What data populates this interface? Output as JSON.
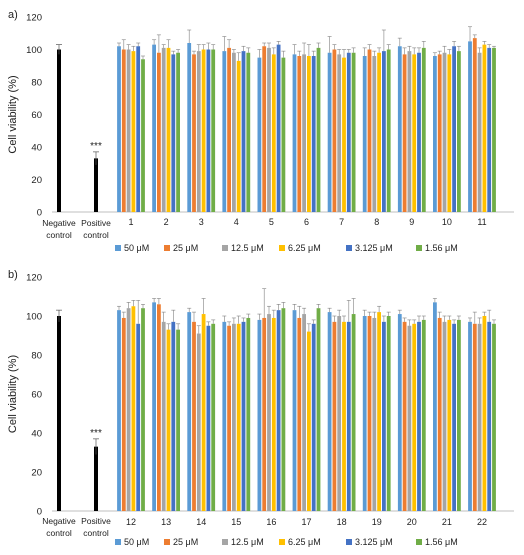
{
  "figure": {
    "panels": [
      "a)",
      "b)"
    ]
  },
  "colors": {
    "controls": "#000000",
    "series": [
      "#5b9bd5",
      "#ed7d31",
      "#a5a5a5",
      "#ffc000",
      "#4472c4",
      "#70ad47"
    ],
    "axis": "#bfbfbf"
  },
  "chart_data": [
    {
      "type": "bar",
      "panel_label": "a)",
      "ylabel": "Cell viability (%)",
      "ylim": [
        0,
        120
      ],
      "yticks": [
        0,
        20,
        40,
        60,
        80,
        100,
        120
      ],
      "grid": false,
      "legend_position": "bottom",
      "controls": {
        "categories": [
          [
            "Negative",
            "control"
          ],
          [
            "Positive",
            "control"
          ]
        ],
        "values": [
          100,
          33
        ],
        "errors": [
          3,
          4
        ],
        "annotation": "***"
      },
      "categories": [
        "1",
        "2",
        "3",
        "4",
        "5",
        "6",
        "7",
        "8",
        "9",
        "10",
        "11"
      ],
      "series": [
        {
          "name": "50 μM",
          "values": [
            102,
            103,
            104,
            99,
            95,
            97,
            98,
            96,
            102,
            96,
            105
          ],
          "errors": [
            2,
            3,
            8,
            9,
            5,
            6,
            10,
            5,
            5,
            2,
            9
          ]
        },
        {
          "name": "25 μM",
          "values": [
            100,
            98,
            97,
            101,
            102,
            96,
            100,
            100,
            97,
            97,
            107
          ],
          "errors": [
            6,
            11,
            2,
            5,
            2,
            3,
            3,
            3,
            4,
            2,
            2
          ]
        },
        {
          "name": "12.5 μM",
          "values": [
            100,
            101,
            99,
            98,
            101,
            97,
            97,
            96,
            99,
            98,
            98
          ],
          "errors": [
            3,
            2,
            4,
            2,
            3,
            7,
            3,
            3,
            3,
            4,
            3
          ]
        },
        {
          "name": "6.25 μM",
          "values": [
            99,
            101,
            100,
            93,
            97,
            96,
            95,
            98,
            97,
            97,
            103
          ],
          "errors": [
            3,
            5,
            3,
            5,
            4,
            7,
            5,
            3,
            4,
            3,
            2
          ]
        },
        {
          "name": "3.125 μM",
          "values": [
            102,
            97,
            100,
            99,
            103,
            96,
            98,
            99,
            98,
            102,
            101
          ],
          "errors": [
            2,
            2,
            4,
            3,
            2,
            3,
            2,
            13,
            3,
            3,
            2
          ]
        },
        {
          "name": "1.56 μM",
          "values": [
            94,
            98,
            100,
            98,
            95,
            101,
            98,
            100,
            101,
            99,
            101
          ],
          "errors": [
            2,
            2,
            3,
            3,
            4,
            3,
            3,
            3,
            4,
            3,
            1
          ]
        }
      ]
    },
    {
      "type": "bar",
      "panel_label": "b)",
      "ylabel": "Cell viability (%)",
      "ylim": [
        0,
        120
      ],
      "yticks": [
        0,
        20,
        40,
        60,
        80,
        100,
        120
      ],
      "grid": false,
      "legend_position": "bottom",
      "controls": {
        "categories": [
          [
            "Negative",
            "control"
          ],
          [
            "Positive",
            "control"
          ]
        ],
        "values": [
          100,
          33
        ],
        "errors": [
          3,
          4
        ],
        "annotation": "***"
      },
      "categories": [
        "12",
        "13",
        "14",
        "15",
        "16",
        "17",
        "18",
        "19",
        "20",
        "21",
        "22"
      ],
      "series": [
        {
          "name": "50 μM",
          "values": [
            103,
            107,
            102,
            97,
            98,
            103,
            102,
            100,
            101,
            107,
            97
          ],
          "errors": [
            2,
            2,
            2,
            3,
            3,
            3,
            2,
            3,
            2,
            2,
            2
          ]
        },
        {
          "name": "25 μM",
          "values": [
            99,
            106,
            97,
            95,
            99,
            99,
            97,
            100,
            97,
            99,
            96
          ],
          "errors": [
            3,
            3,
            5,
            2,
            15,
            6,
            3,
            2,
            2,
            3,
            6
          ]
        },
        {
          "name": "12.5 μM",
          "values": [
            104,
            97,
            91,
            96,
            101,
            101,
            100,
            99,
            95,
            97,
            96
          ],
          "errors": [
            3,
            5,
            4,
            3,
            4,
            3,
            3,
            3,
            3,
            3,
            3
          ]
        },
        {
          "name": "6.25 μM",
          "values": [
            105,
            93,
            101,
            96,
            99,
            92,
            97,
            102,
            96,
            98,
            100
          ],
          "errors": [
            3,
            3,
            8,
            4,
            4,
            4,
            3,
            3,
            2,
            2,
            2
          ]
        },
        {
          "name": "3.125 μM",
          "values": [
            96,
            97,
            95,
            97,
            103,
            96,
            97,
            97,
            97,
            96,
            97
          ],
          "errors": [
            12,
            6,
            2,
            2,
            3,
            2,
            11,
            3,
            3,
            2,
            6
          ]
        },
        {
          "name": "1.56 μM",
          "values": [
            104,
            93,
            96,
            99,
            104,
            104,
            101,
            100,
            98,
            98,
            96
          ],
          "errors": [
            2,
            3,
            2,
            2,
            3,
            2,
            8,
            2,
            2,
            2,
            2
          ]
        }
      ]
    }
  ]
}
